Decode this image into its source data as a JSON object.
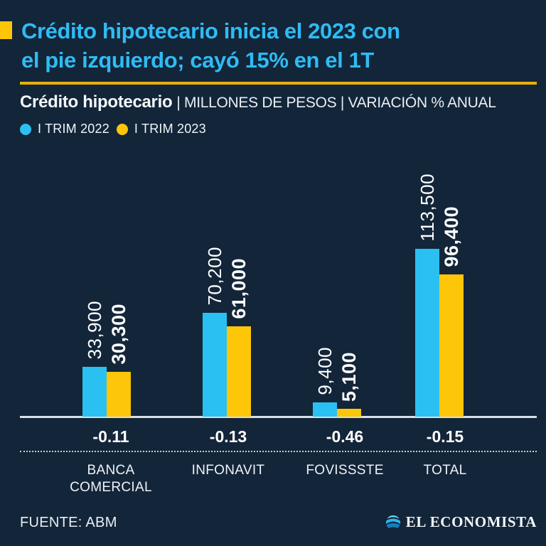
{
  "page": {
    "background": "#132539",
    "accent_yellow": "#fdc608",
    "accent_cyan": "#2bc0f2",
    "rule_color": "#e7b109"
  },
  "header": {
    "title_line1": "Crédito hipotecario inicia el 2023 con",
    "title_line2": "el pie izquierdo; cayó 15% en el 1T",
    "title_color": "#2ebcf4"
  },
  "subtitle": {
    "bold": "Crédito hipotecario",
    "rest": "| MILLONES DE PESOS | VARIACIÓN % ANUAL"
  },
  "legend": [
    {
      "label": "I TRIM 2022",
      "color": "#2bc0f2"
    },
    {
      "label": "I TRIM 2023",
      "color": "#fdc608"
    }
  ],
  "chart_data": {
    "type": "bar",
    "title": "Crédito hipotecario",
    "units": "MILLONES DE PESOS",
    "secondary_metric": "VARIACIÓN % ANUAL",
    "categories": [
      "BANCA COMERCIAL",
      "INFONAVIT",
      "FOVISSSTE",
      "TOTAL"
    ],
    "category_lines": [
      [
        "BANCA",
        "COMERCIAL"
      ],
      [
        "INFONAVIT"
      ],
      [
        "FOVISSSTE"
      ],
      [
        "TOTAL"
      ]
    ],
    "series": [
      {
        "name": "I TRIM 2022",
        "color": "#2bc0f2",
        "values": [
          33900,
          70200,
          9400,
          113500
        ],
        "labels": [
          "33,900",
          "70,200",
          "9,400",
          "113,500"
        ]
      },
      {
        "name": "I TRIM 2023",
        "color": "#fdc608",
        "values": [
          30300,
          61000,
          5100,
          96400
        ],
        "labels": [
          "30,300",
          "61,000",
          "5,100",
          "96,400"
        ]
      }
    ],
    "variation_pct_anual": [
      "-0.11",
      "-0.13",
      "-0.46",
      "-0.15"
    ],
    "ylim": [
      0,
      113500
    ],
    "grid": false,
    "legend_position": "top-left"
  },
  "footer": {
    "source": "FUENTE: ABM",
    "brand": "EL ECONOMISTA"
  }
}
